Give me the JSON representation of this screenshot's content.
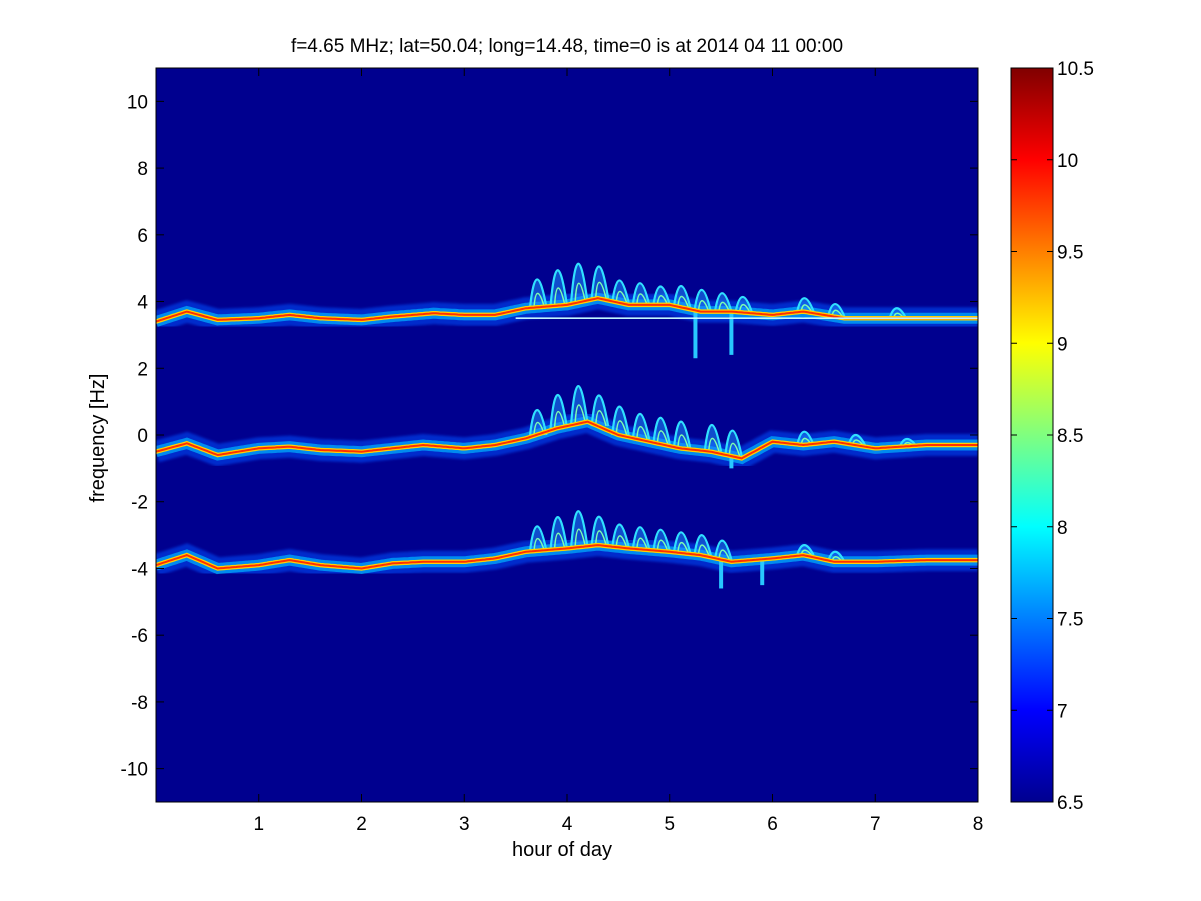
{
  "chart_data": {
    "type": "heatmap",
    "title": "f=4.65 MHz;  lat=50.04; long=14.48, time=0 is at 2014 04 11 00:00",
    "xlabel": "hour of day",
    "ylabel": "frequency [Hz]",
    "xlim": [
      0,
      8
    ],
    "ylim": [
      -11,
      11
    ],
    "x_ticks": [
      1,
      2,
      3,
      4,
      5,
      6,
      7,
      8
    ],
    "x_tick_labels": [
      "1",
      "2",
      "3",
      "4",
      "5",
      "6",
      "7",
      "8"
    ],
    "y_ticks": [
      10,
      8,
      6,
      4,
      2,
      0,
      -2,
      -4,
      -6,
      -8,
      -10
    ],
    "y_tick_labels": [
      "10",
      "8",
      "6",
      "4",
      "2",
      "0",
      "-2",
      "-4",
      "-6",
      "-8",
      "-10"
    ],
    "colorbar": {
      "colormap": "jet",
      "range": [
        6.5,
        10.5
      ],
      "ticks": [
        6.5,
        7,
        7.5,
        8,
        8.5,
        9,
        9.5,
        10,
        10.5
      ],
      "tick_labels": [
        "6.5",
        "7",
        "7.5",
        "8",
        "8.5",
        "9",
        "9.5",
        "10",
        "10.5"
      ]
    },
    "background_color": "#00008f",
    "traces": [
      {
        "points": [
          [
            0.0,
            3.4
          ],
          [
            0.3,
            3.7
          ],
          [
            0.6,
            3.45
          ],
          [
            1.0,
            3.5
          ],
          [
            1.3,
            3.6
          ],
          [
            1.6,
            3.5
          ],
          [
            2.0,
            3.45
          ],
          [
            2.3,
            3.55
          ],
          [
            2.7,
            3.65
          ],
          [
            3.0,
            3.6
          ],
          [
            3.3,
            3.6
          ],
          [
            3.6,
            3.8
          ],
          [
            4.0,
            3.9
          ],
          [
            4.3,
            4.1
          ],
          [
            4.6,
            3.9
          ],
          [
            5.0,
            3.9
          ],
          [
            5.3,
            3.7
          ],
          [
            5.6,
            3.7
          ],
          [
            6.0,
            3.6
          ],
          [
            6.3,
            3.7
          ],
          [
            6.7,
            3.5
          ],
          [
            7.0,
            3.5
          ],
          [
            7.5,
            3.5
          ],
          [
            8.0,
            3.5
          ]
        ],
        "band_center": 3.5,
        "burst_tops": [
          [
            3.7,
            5.5
          ],
          [
            3.9,
            6.0
          ],
          [
            4.1,
            6.3
          ],
          [
            4.3,
            6.0
          ],
          [
            4.5,
            5.3
          ],
          [
            4.7,
            5.2
          ],
          [
            4.9,
            5.0
          ],
          [
            5.1,
            5.1
          ],
          [
            5.3,
            5.0
          ],
          [
            5.5,
            4.8
          ],
          [
            5.7,
            4.6
          ],
          [
            6.3,
            4.5
          ],
          [
            6.6,
            4.3
          ],
          [
            7.2,
            4.1
          ]
        ],
        "dips": [
          [
            5.25,
            2.3
          ],
          [
            5.6,
            2.4
          ]
        ]
      },
      {
        "points": [
          [
            0.0,
            -0.5
          ],
          [
            0.3,
            -0.25
          ],
          [
            0.6,
            -0.6
          ],
          [
            1.0,
            -0.4
          ],
          [
            1.3,
            -0.35
          ],
          [
            1.6,
            -0.45
          ],
          [
            2.0,
            -0.5
          ],
          [
            2.3,
            -0.4
          ],
          [
            2.6,
            -0.3
          ],
          [
            3.0,
            -0.4
          ],
          [
            3.3,
            -0.3
          ],
          [
            3.6,
            -0.1
          ],
          [
            3.9,
            0.2
          ],
          [
            4.2,
            0.4
          ],
          [
            4.5,
            0.0
          ],
          [
            4.8,
            -0.2
          ],
          [
            5.1,
            -0.4
          ],
          [
            5.4,
            -0.5
          ],
          [
            5.7,
            -0.7
          ],
          [
            6.0,
            -0.2
          ],
          [
            6.3,
            -0.3
          ],
          [
            6.6,
            -0.2
          ],
          [
            7.0,
            -0.4
          ],
          [
            7.5,
            -0.3
          ],
          [
            8.0,
            -0.3
          ]
        ],
        "band_center": -0.4,
        "burst_tops": [
          [
            3.7,
            1.5
          ],
          [
            3.9,
            2.2
          ],
          [
            4.1,
            2.6
          ],
          [
            4.3,
            2.1
          ],
          [
            4.5,
            1.7
          ],
          [
            4.7,
            1.4
          ],
          [
            4.9,
            1.3
          ],
          [
            5.1,
            1.2
          ],
          [
            5.4,
            1.1
          ],
          [
            5.6,
            0.9
          ],
          [
            6.3,
            0.5
          ],
          [
            6.8,
            0.3
          ],
          [
            7.3,
            0.1
          ]
        ],
        "dips": [
          [
            5.6,
            -1.0
          ]
        ]
      },
      {
        "points": [
          [
            0.0,
            -3.9
          ],
          [
            0.3,
            -3.6
          ],
          [
            0.6,
            -4.0
          ],
          [
            1.0,
            -3.9
          ],
          [
            1.3,
            -3.75
          ],
          [
            1.6,
            -3.9
          ],
          [
            2.0,
            -4.0
          ],
          [
            2.3,
            -3.85
          ],
          [
            2.6,
            -3.8
          ],
          [
            3.0,
            -3.8
          ],
          [
            3.3,
            -3.7
          ],
          [
            3.6,
            -3.5
          ],
          [
            4.0,
            -3.4
          ],
          [
            4.3,
            -3.3
          ],
          [
            4.6,
            -3.4
          ],
          [
            5.0,
            -3.5
          ],
          [
            5.3,
            -3.6
          ],
          [
            5.6,
            -3.8
          ],
          [
            6.0,
            -3.7
          ],
          [
            6.3,
            -3.6
          ],
          [
            6.6,
            -3.8
          ],
          [
            7.0,
            -3.8
          ],
          [
            7.5,
            -3.75
          ],
          [
            8.0,
            -3.75
          ]
        ],
        "band_center": -3.8,
        "burst_tops": [
          [
            3.7,
            -2.0
          ],
          [
            3.9,
            -1.5
          ],
          [
            4.1,
            -1.2
          ],
          [
            4.3,
            -1.6
          ],
          [
            4.5,
            -2.0
          ],
          [
            4.7,
            -2.1
          ],
          [
            4.9,
            -2.2
          ],
          [
            5.1,
            -2.3
          ],
          [
            5.3,
            -2.4
          ],
          [
            5.5,
            -2.6
          ],
          [
            6.3,
            -3.0
          ],
          [
            6.6,
            -3.2
          ]
        ],
        "dips": [
          [
            5.5,
            -4.6
          ],
          [
            5.9,
            -4.5
          ]
        ]
      }
    ]
  }
}
